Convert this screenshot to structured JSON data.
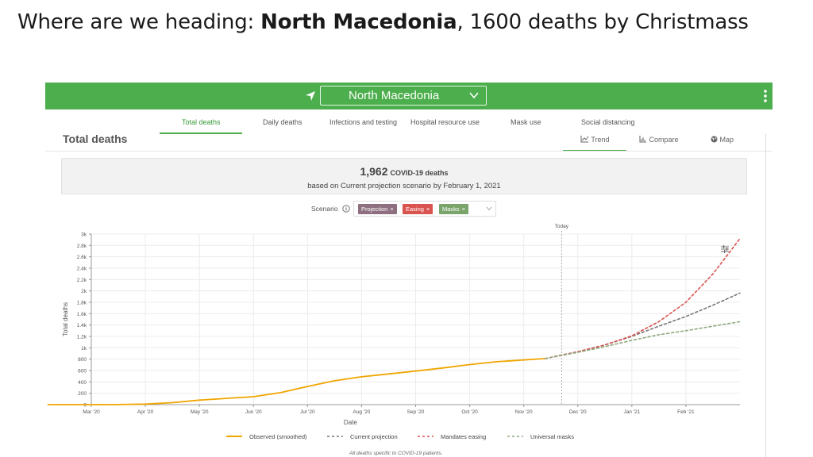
{
  "slide": {
    "title_pre": "Where are we heading:  ",
    "title_country": "North Macedonia",
    "title_post": ",  1600 deaths by Christmass"
  },
  "topbar": {
    "country": "North Macedonia"
  },
  "tabs": [
    {
      "label": "Total deaths",
      "active": true
    },
    {
      "label": "Daily deaths",
      "active": false
    },
    {
      "label": "Infections and testing",
      "active": false
    },
    {
      "label": "Hospital resource use",
      "active": false
    },
    {
      "label": "Mask use",
      "active": false
    },
    {
      "label": "Social distancing",
      "active": false
    }
  ],
  "section": {
    "title": "Total deaths",
    "views": [
      "Trend",
      "Compare",
      "Map"
    ]
  },
  "summary": {
    "count": "1,962",
    "count_label": "COVID-19 deaths",
    "subtitle": "based on Current projection scenario by February 1, 2021"
  },
  "scenario": {
    "label": "Scenario",
    "chips": [
      {
        "label": "Projection",
        "color": "#8e6f80"
      },
      {
        "label": "Easing",
        "color": "#d9534f"
      },
      {
        "label": "Masks",
        "color": "#7aa46a"
      }
    ]
  },
  "chart_data": {
    "type": "line",
    "xlabel": "Date",
    "ylabel": "Total deaths",
    "today_label": "Today",
    "footnote": "All deaths specific to COVID-19 patients.",
    "x_ticks": [
      "Mar '20",
      "Apr '20",
      "May '20",
      "Jun '20",
      "Jul '20",
      "Aug '20",
      "Sep '20",
      "Oct '20",
      "Nov '20",
      "Dec '20",
      "Jan '21",
      "Feb '21"
    ],
    "x_range": [
      0,
      12
    ],
    "today_x": 8.7,
    "y_ticks": [
      0,
      200,
      400,
      600,
      800,
      1000,
      1200,
      1400,
      1600,
      1800,
      2000,
      2200,
      2400,
      2600,
      2800,
      3000
    ],
    "y_tick_labels": [
      "0",
      "200",
      "400",
      "600",
      "800",
      "1k",
      "1.2k",
      "1.4k",
      "1.6k",
      "1.8k",
      "2k",
      "2.2k",
      "2.4k",
      "2.6k",
      "2.8k",
      "3k"
    ],
    "ylim": [
      0,
      3000
    ],
    "series": [
      {
        "name": "Observed (smoothed)",
        "color": "#f0a500",
        "dash": "solid",
        "points": [
          [
            -0.8,
            0
          ],
          [
            0,
            0
          ],
          [
            0.5,
            2
          ],
          [
            1,
            10
          ],
          [
            1.5,
            35
          ],
          [
            2,
            80
          ],
          [
            2.5,
            110
          ],
          [
            3,
            140
          ],
          [
            3.5,
            210
          ],
          [
            4,
            320
          ],
          [
            4.5,
            420
          ],
          [
            5,
            490
          ],
          [
            5.5,
            540
          ],
          [
            6,
            590
          ],
          [
            6.5,
            645
          ],
          [
            7,
            705
          ],
          [
            7.5,
            755
          ],
          [
            8.4,
            810
          ]
        ]
      },
      {
        "name": "Current projection",
        "color": "#777777",
        "dash": "dashed",
        "points": [
          [
            8.4,
            810
          ],
          [
            9,
            930
          ],
          [
            9.5,
            1050
          ],
          [
            10,
            1200
          ],
          [
            10.5,
            1380
          ],
          [
            11,
            1550
          ],
          [
            11.5,
            1750
          ],
          [
            12,
            1962
          ]
        ]
      },
      {
        "name": "Mandates easing",
        "color": "#d9534f",
        "dash": "dashed",
        "points": [
          [
            8.4,
            810
          ],
          [
            9,
            930
          ],
          [
            9.5,
            1050
          ],
          [
            10,
            1210
          ],
          [
            10.5,
            1460
          ],
          [
            11,
            1800
          ],
          [
            11.5,
            2300
          ],
          [
            12,
            2920
          ]
        ]
      },
      {
        "name": "Universal masks",
        "color": "#8faa7e",
        "dash": "dashed",
        "points": [
          [
            8.4,
            810
          ],
          [
            9,
            920
          ],
          [
            9.5,
            1020
          ],
          [
            10,
            1130
          ],
          [
            10.5,
            1230
          ],
          [
            11,
            1300
          ],
          [
            11.5,
            1380
          ],
          [
            12,
            1460
          ]
        ]
      }
    ]
  }
}
